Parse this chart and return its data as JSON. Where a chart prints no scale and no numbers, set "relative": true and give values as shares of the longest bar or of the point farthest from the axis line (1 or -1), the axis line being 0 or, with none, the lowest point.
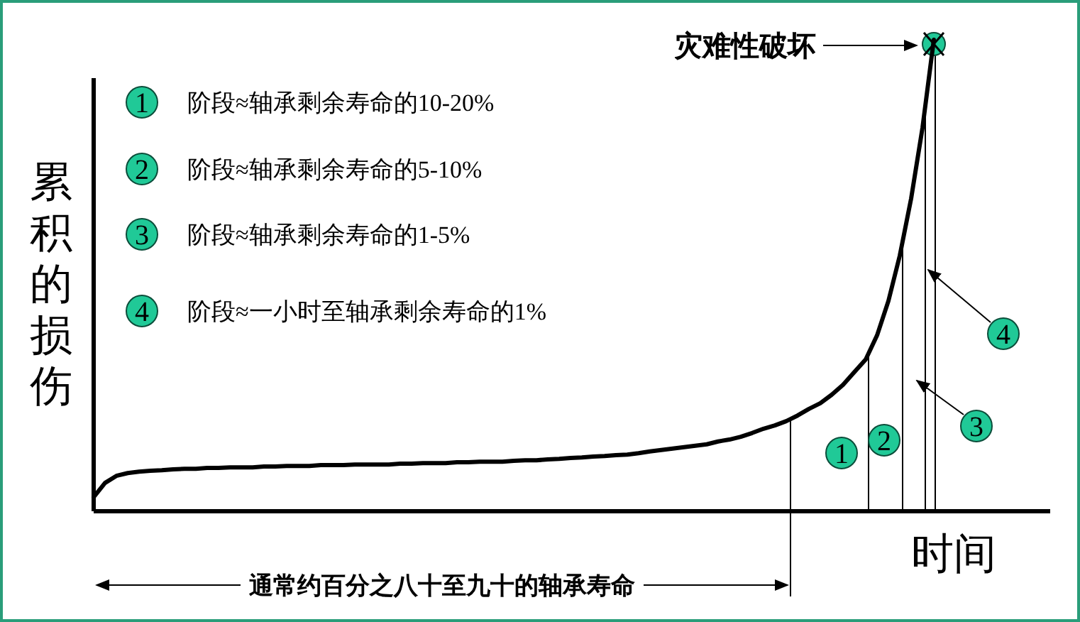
{
  "chart_data": {
    "type": "line",
    "relative": true,
    "color": "#000000",
    "marker": "none",
    "line_style": "solid",
    "xlabel": "时间",
    "ylabel": "累积的损伤",
    "categories": [
      null,
      null,
      null,
      null,
      null,
      null,
      null,
      null,
      null,
      null,
      null,
      null,
      null,
      null,
      null,
      null,
      null,
      null,
      null,
      null,
      null,
      null,
      null,
      null,
      null,
      null,
      null,
      null,
      null,
      null,
      null,
      null,
      null,
      null,
      null,
      null,
      null,
      null,
      null,
      null,
      null,
      null,
      null,
      null,
      null,
      null,
      null,
      null,
      null,
      null,
      null,
      null,
      null,
      null,
      null,
      null,
      null,
      null,
      null,
      null,
      null,
      null,
      null,
      null,
      null,
      null,
      null,
      null,
      null,
      null,
      null,
      null,
      null,
      null,
      null
    ],
    "values": [
      0.03,
      0.06,
      0.075,
      0.081,
      0.084,
      0.086,
      0.087,
      0.089,
      0.09,
      0.09,
      0.092,
      0.092,
      0.093,
      0.093,
      0.093,
      0.095,
      0.095,
      0.096,
      0.096,
      0.096,
      0.098,
      0.098,
      0.098,
      0.099,
      0.099,
      0.099,
      0.099,
      0.101,
      0.101,
      0.102,
      0.102,
      0.102,
      0.104,
      0.104,
      0.105,
      0.105,
      0.105,
      0.107,
      0.108,
      0.108,
      0.11,
      0.111,
      0.113,
      0.114,
      0.116,
      0.117,
      0.119,
      0.12,
      0.123,
      0.127,
      0.13,
      0.133,
      0.136,
      0.139,
      0.142,
      0.148,
      0.152,
      0.158,
      0.166,
      0.175,
      0.182,
      0.191,
      0.203,
      0.217,
      0.229,
      0.247,
      0.268,
      0.295,
      0.322,
      0.373,
      0.446,
      0.542,
      0.663,
      0.813,
      1
    ],
    "annotations": [
      "阶段≈轴承剩余寿命的10-20%",
      "阶段≈轴承剩余寿命的5-10%",
      "阶段≈轴承剩余寿命的1-5%",
      "阶段≈一小时至轴承剩余寿命的1%",
      "灾难性破坏",
      "通常约百分之八十至九十的轴承寿命",
      "1",
      "2",
      "3",
      "4",
      "1",
      "2",
      "3",
      "4"
    ]
  }
}
